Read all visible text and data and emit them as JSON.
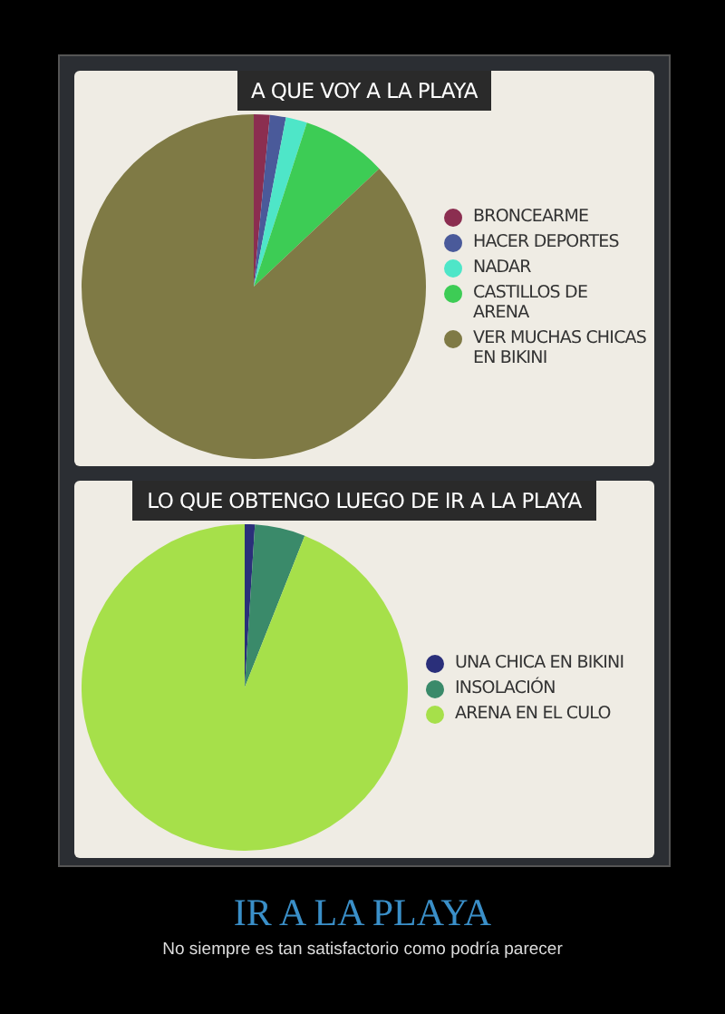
{
  "chart_data": [
    {
      "type": "pie",
      "title": "A QUE VOY A LA PLAYA",
      "categories": [
        "BRONCEARME",
        "HACER DEPORTES",
        "NADAR",
        "CASTILLOS DE ARENA",
        "VER MUCHAS CHICAS EN BIKINI"
      ],
      "values": [
        1.5,
        1.5,
        2,
        8,
        87
      ],
      "colors": [
        "#8b2e50",
        "#4a5a9a",
        "#4ee6c8",
        "#3dcc55",
        "#7f7a45"
      ],
      "legend": "right"
    },
    {
      "type": "pie",
      "title": "LO QUE OBTENGO LUEGO DE IR A LA PLAYA",
      "categories": [
        "UNA CHICA EN BIKINI",
        "INSOLACIÓN",
        "ARENA EN EL CULO"
      ],
      "values": [
        1,
        5,
        94
      ],
      "colors": [
        "#2a2f7a",
        "#3a8a6a",
        "#a6e04a"
      ],
      "legend": "right",
      "annotations": [
        "IR A LA PLAYA",
        "No siempre es tan satisfactorio como podría parecer"
      ]
    }
  ]
}
